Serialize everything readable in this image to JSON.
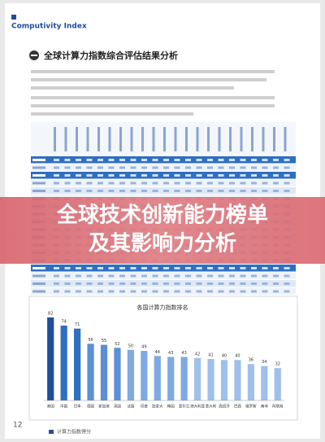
{
  "header": {
    "brand": "Computivity Index"
  },
  "section": {
    "title": "全球计算力指数综合评估结果分析"
  },
  "overlay": {
    "line1": "全球技术创新能力榜单",
    "line2": "及其影响力分析"
  },
  "bar_chart": {
    "title": "各国计算力指数排名",
    "categories": [
      "美国",
      "中国",
      "日本",
      "德国",
      "新加坡",
      "英国",
      "法国",
      "印度",
      "加拿大",
      "韩国",
      "爱尔兰",
      "澳大利亚",
      "意大利",
      "西班牙",
      "巴西",
      "俄罗斯",
      "南非",
      "阿联酋"
    ],
    "values": [
      82,
      74,
      71,
      56,
      55,
      52,
      50,
      49,
      44,
      43,
      43,
      42,
      41,
      40,
      40,
      36,
      34,
      32
    ],
    "colors": [
      "#1f4e9c",
      "#2e6fc2",
      "#2e6fc2",
      "#5b8fd6",
      "#5b8fd6",
      "#5b8fd6",
      "#7fa9e3",
      "#7fa9e3",
      "#7fa9e3",
      "#7fa9e3",
      "#7fa9e3",
      "#9fc0ec",
      "#9fc0ec",
      "#9fc0ec",
      "#9fc0ec",
      "#9fc0ec",
      "#9fc0ec",
      "#9fc0ec"
    ],
    "legend": "计算力指数得分"
  },
  "footer": {
    "page": "12"
  }
}
